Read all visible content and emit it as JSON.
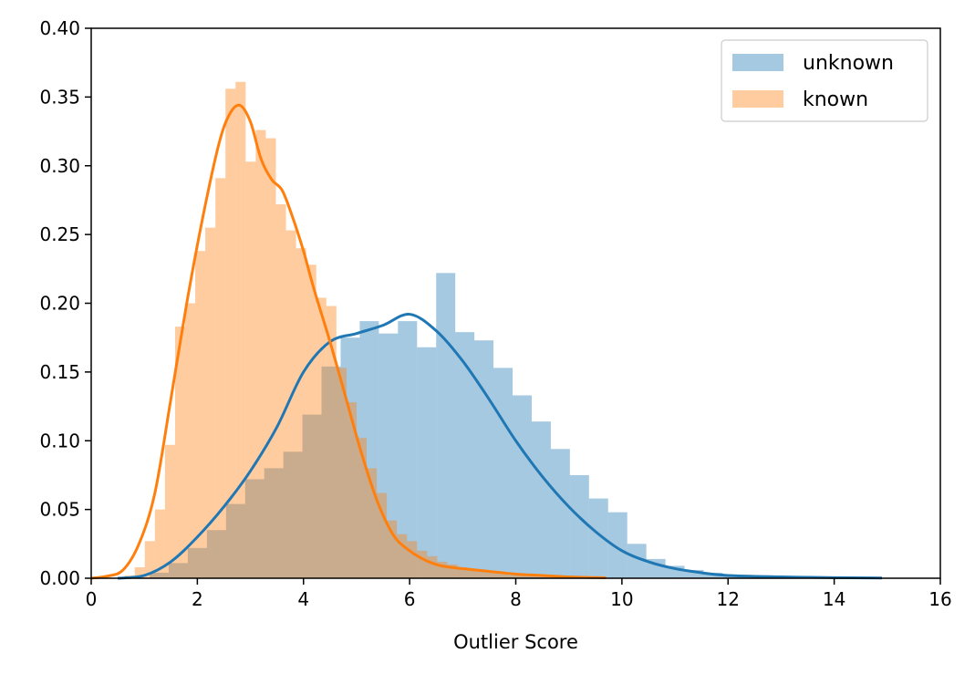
{
  "chart_data": {
    "type": "histogram",
    "title": "",
    "xlabel": "Outlier Score",
    "ylabel": "",
    "xlim": [
      0,
      16
    ],
    "ylim": [
      0,
      0.4
    ],
    "xticks": [
      0,
      2,
      4,
      6,
      8,
      10,
      12,
      14,
      16
    ],
    "yticks": [
      0.0,
      0.05,
      0.1,
      0.15,
      0.2,
      0.25,
      0.3,
      0.35,
      0.4
    ],
    "ytick_labels": [
      "0.00",
      "0.05",
      "0.10",
      "0.15",
      "0.20",
      "0.25",
      "0.30",
      "0.35",
      "0.40"
    ],
    "grid": false,
    "legend_position": "top-right",
    "series": [
      {
        "name": "unknown",
        "color": "#1f77b4",
        "bin_width": 0.36,
        "bin_starts": [
          1.1,
          1.46,
          1.82,
          2.18,
          2.54,
          2.9,
          3.26,
          3.62,
          3.98,
          4.34,
          4.7,
          5.06,
          5.42,
          5.78,
          6.14,
          6.5,
          6.86,
          7.22,
          7.58,
          7.94,
          8.3,
          8.66,
          9.02,
          9.38,
          9.74,
          10.1,
          10.46,
          10.82,
          11.18,
          11.54,
          11.9,
          12.26,
          12.62,
          12.98,
          13.34,
          13.7,
          14.06,
          14.42
        ],
        "bin_heights": [
          0.004,
          0.011,
          0.022,
          0.035,
          0.054,
          0.072,
          0.08,
          0.092,
          0.119,
          0.154,
          0.175,
          0.187,
          0.178,
          0.187,
          0.168,
          0.222,
          0.179,
          0.173,
          0.153,
          0.133,
          0.114,
          0.094,
          0.075,
          0.058,
          0.048,
          0.025,
          0.014,
          0.009,
          0.006,
          0.004,
          0.002,
          0.0015,
          0.001,
          0.001,
          0.0006,
          0.0005,
          0.0004,
          0.0003
        ],
        "kde_x": [
          0.5,
          1.0,
          1.5,
          2.0,
          2.5,
          3.0,
          3.5,
          4.0,
          4.5,
          5.0,
          5.5,
          6.0,
          6.5,
          7.0,
          7.5,
          8.0,
          8.5,
          9.0,
          9.5,
          10.0,
          10.5,
          11.0,
          11.5,
          12.0,
          13.0,
          14.0,
          14.9
        ],
        "kde_y": [
          0.0,
          0.002,
          0.012,
          0.03,
          0.052,
          0.078,
          0.11,
          0.15,
          0.172,
          0.178,
          0.184,
          0.192,
          0.18,
          0.158,
          0.13,
          0.1,
          0.074,
          0.052,
          0.034,
          0.02,
          0.012,
          0.007,
          0.004,
          0.002,
          0.001,
          0.0004,
          0.0002
        ]
      },
      {
        "name": "known",
        "color": "#ff7f0e",
        "bin_width": 0.19,
        "bin_starts": [
          0.63,
          0.82,
          1.01,
          1.2,
          1.39,
          1.58,
          1.77,
          1.96,
          2.15,
          2.34,
          2.53,
          2.72,
          2.91,
          3.1,
          3.29,
          3.48,
          3.67,
          3.86,
          4.05,
          4.24,
          4.43,
          4.62,
          4.81,
          5.0,
          5.19,
          5.38,
          5.57,
          5.76,
          5.95,
          6.14,
          6.33,
          6.52,
          6.71,
          6.9,
          7.09,
          7.28,
          7.47,
          7.66,
          7.85,
          8.04,
          8.23,
          8.42,
          8.61,
          8.8,
          9.0,
          9.19,
          9.38,
          9.57
        ],
        "bin_heights": [
          0.002,
          0.008,
          0.027,
          0.05,
          0.097,
          0.183,
          0.2,
          0.238,
          0.255,
          0.291,
          0.356,
          0.361,
          0.303,
          0.326,
          0.32,
          0.272,
          0.253,
          0.24,
          0.228,
          0.204,
          0.198,
          0.153,
          0.128,
          0.102,
          0.08,
          0.062,
          0.042,
          0.032,
          0.027,
          0.02,
          0.016,
          0.012,
          0.01,
          0.008,
          0.006,
          0.005,
          0.004,
          0.003,
          0.002,
          0.002,
          0.0015,
          0.001,
          0.001,
          0.0008,
          0.0006,
          0.0005,
          0.0004,
          0.0003
        ],
        "kde_x": [
          0.0,
          0.3,
          0.6,
          0.9,
          1.2,
          1.5,
          1.8,
          2.1,
          2.4,
          2.6,
          2.8,
          3.0,
          3.2,
          3.4,
          3.6,
          3.8,
          4.0,
          4.2,
          4.5,
          4.8,
          5.1,
          5.4,
          5.7,
          6.0,
          6.3,
          6.6,
          7.0,
          7.5,
          8.0,
          8.5,
          9.0,
          9.5,
          9.7
        ],
        "kde_y": [
          0.0,
          0.0015,
          0.006,
          0.025,
          0.062,
          0.13,
          0.2,
          0.262,
          0.315,
          0.337,
          0.344,
          0.332,
          0.305,
          0.29,
          0.282,
          0.262,
          0.238,
          0.21,
          0.172,
          0.131,
          0.09,
          0.055,
          0.031,
          0.02,
          0.013,
          0.009,
          0.007,
          0.005,
          0.003,
          0.002,
          0.001,
          0.0005,
          0.0003
        ]
      }
    ]
  }
}
